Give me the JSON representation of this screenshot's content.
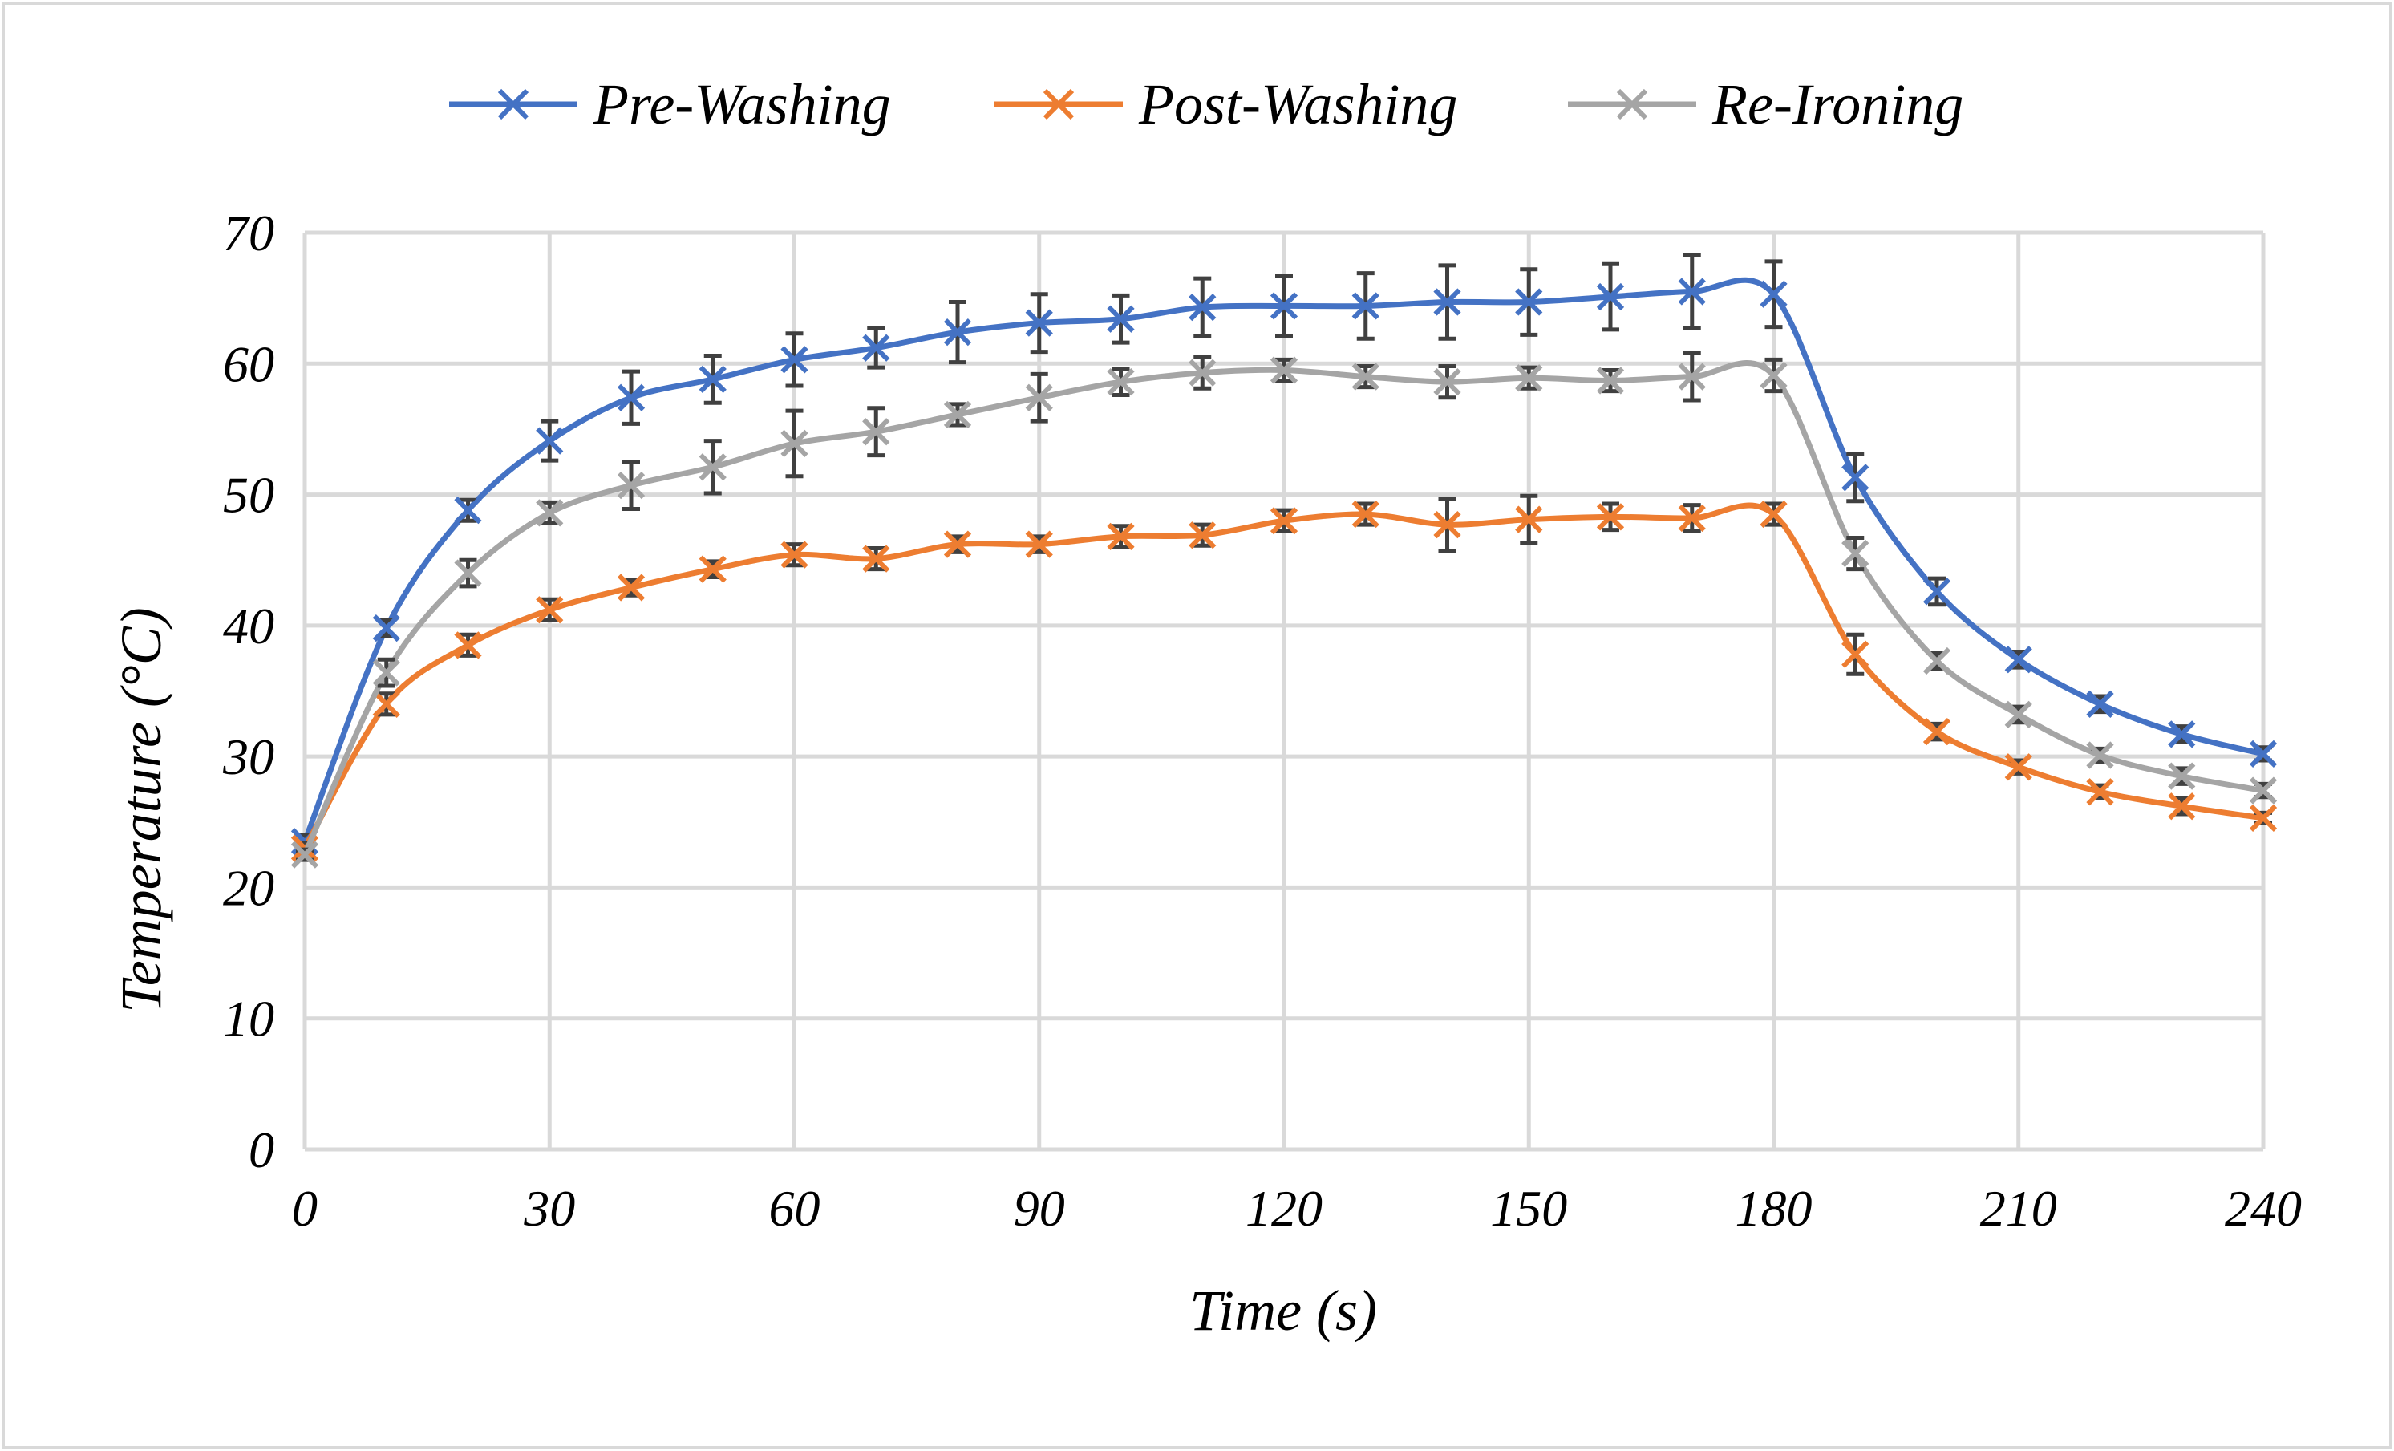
{
  "chart_data": {
    "type": "line",
    "title": "",
    "xlabel": "Time (s)",
    "ylabel": "Temperature (°C)",
    "xlim": [
      0,
      240
    ],
    "ylim": [
      0,
      70
    ],
    "xticks": [
      "0",
      "30",
      "60",
      "90",
      "120",
      "150",
      "180",
      "210",
      "240"
    ],
    "yticks": [
      "0",
      "10",
      "20",
      "30",
      "40",
      "50",
      "60",
      "70"
    ],
    "grid": true,
    "legend_position": "top",
    "x": [
      0,
      10,
      20,
      30,
      40,
      50,
      60,
      70,
      80,
      90,
      100,
      110,
      120,
      130,
      140,
      150,
      160,
      170,
      180,
      190,
      200,
      210,
      220,
      230,
      240
    ],
    "series": [
      {
        "name": "Pre-Washing",
        "color": "#4472c4",
        "marker": "x",
        "values": [
          23.5,
          39.8,
          48.8,
          54.1,
          57.4,
          58.8,
          60.3,
          61.2,
          62.4,
          63.1,
          63.4,
          64.3,
          64.4,
          64.4,
          64.7,
          64.7,
          65.1,
          65.5,
          65.3,
          51.3,
          42.6,
          37.4,
          34.0,
          31.7,
          30.2
        ],
        "errors": [
          0.5,
          0.6,
          0.8,
          1.5,
          2.0,
          1.8,
          2.0,
          1.5,
          2.3,
          2.2,
          1.8,
          2.2,
          2.3,
          2.5,
          2.8,
          2.5,
          2.5,
          2.8,
          2.5,
          1.8,
          1.0,
          0.6,
          0.6,
          0.6,
          0.5
        ]
      },
      {
        "name": "Post-Washing",
        "color": "#ed7d31",
        "marker": "x",
        "values": [
          23.0,
          34.0,
          38.5,
          41.2,
          42.9,
          44.3,
          45.4,
          45.1,
          46.2,
          46.2,
          46.8,
          46.9,
          48.0,
          48.5,
          47.7,
          48.1,
          48.3,
          48.2,
          48.5,
          37.8,
          31.9,
          29.2,
          27.3,
          26.2,
          25.3
        ],
        "errors": [
          0.4,
          0.8,
          0.8,
          0.8,
          0.6,
          0.6,
          0.8,
          0.8,
          0.6,
          0.6,
          0.8,
          0.8,
          0.8,
          0.8,
          2.0,
          1.8,
          1.0,
          1.0,
          0.8,
          1.5,
          0.6,
          0.5,
          0.5,
          0.6,
          0.4
        ]
      },
      {
        "name": "Re-Ironing",
        "color": "#a5a5a5",
        "marker": "x",
        "values": [
          22.5,
          36.4,
          44.0,
          48.6,
          50.7,
          52.1,
          53.9,
          54.8,
          56.1,
          57.4,
          58.6,
          59.3,
          59.5,
          59.0,
          58.6,
          58.9,
          58.7,
          59.0,
          59.1,
          45.5,
          37.3,
          33.2,
          30.1,
          28.5,
          27.4
        ],
        "errors": [
          0.4,
          1.0,
          1.0,
          0.8,
          1.8,
          2.0,
          2.5,
          1.8,
          0.8,
          1.8,
          1.0,
          1.2,
          0.8,
          0.8,
          1.2,
          0.8,
          0.8,
          1.8,
          1.2,
          1.2,
          0.6,
          0.6,
          0.5,
          0.6,
          0.5
        ]
      }
    ]
  }
}
